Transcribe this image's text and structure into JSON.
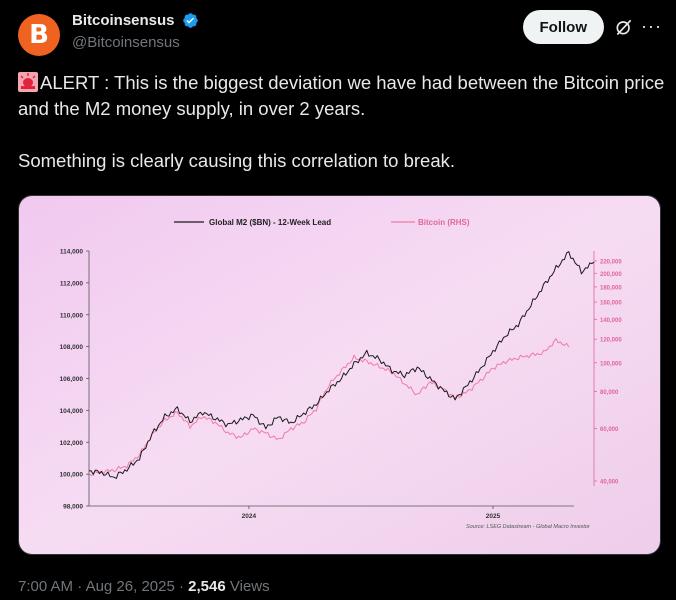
{
  "author": {
    "display_name": "Bitcoinsensus",
    "handle": "@Bitcoinsensus",
    "avatar_letter": "B",
    "avatar_color": "#f0621f"
  },
  "actions": {
    "follow_label": "Follow",
    "grok_icon": "grok-icon",
    "more_icon": "more-dots-icon"
  },
  "tweet": {
    "line1": "ALERT : This is the biggest deviation we have had between the Bitcoin price and the M2 money supply, in over 2 years.",
    "line2": "Something is clearly causing this correlation to break."
  },
  "chart_data": {
    "type": "line",
    "legend": [
      "Global M2 ($BN) - 12-Week Lead",
      "Bitcoin (RHS)"
    ],
    "left_axis_ticks": [
      "114,000",
      "112,000",
      "110,000",
      "108,000",
      "106,000",
      "104,000",
      "102,000",
      "100,000",
      "98,000"
    ],
    "right_axis_ticks": [
      "220,000",
      "200,000",
      "180,000",
      "160,000",
      "140,000",
      "120,000",
      "100,000",
      "80,000",
      "60,000",
      "40,000"
    ],
    "x_ticks": [
      "2024",
      "2025"
    ],
    "source": "Source: LSEG Datastream - Global Macro Investor",
    "ylim_left": [
      98000,
      114000
    ],
    "ylim_right": [
      40000,
      220000
    ],
    "right_scale": "log",
    "legend_position": "top-center",
    "series": [
      {
        "name": "Global M2 ($BN) - 12-Week Lead",
        "color": "#1a1a1a",
        "axis": "left",
        "x": [
          0,
          3,
          6,
          9,
          12,
          15,
          18,
          21,
          24,
          27,
          30,
          33,
          36,
          39,
          42,
          45,
          48,
          51,
          54,
          57,
          60,
          63,
          66,
          69,
          72,
          75,
          78,
          81,
          84,
          87,
          90,
          93,
          96,
          99,
          102,
          105,
          108,
          111,
          114,
          117,
          120
        ],
        "values": [
          100200,
          100100,
          99800,
          100300,
          101000,
          102500,
          103600,
          104100,
          103300,
          103900,
          103500,
          103100,
          103400,
          103700,
          102900,
          103600,
          103200,
          103800,
          104400,
          105300,
          106000,
          106900,
          107600,
          107200,
          106500,
          106200,
          106700,
          106000,
          105300,
          104700,
          105600,
          106600,
          107700,
          108700,
          109400,
          110600,
          111800,
          112900,
          113900,
          112700,
          113300
        ]
      },
      {
        "name": "Bitcoin (RHS)",
        "color": "#f07aa6",
        "axis": "right",
        "x": [
          0,
          3,
          6,
          9,
          12,
          15,
          18,
          21,
          24,
          27,
          30,
          33,
          36,
          39,
          42,
          45,
          48,
          51,
          54,
          57,
          60,
          63,
          66,
          69,
          72,
          75,
          78,
          81,
          84,
          87,
          90,
          93,
          96,
          99,
          102,
          105,
          108,
          111,
          114
        ],
        "values": [
          42000,
          43000,
          43500,
          45000,
          49000,
          57000,
          64000,
          68000,
          61000,
          66000,
          63000,
          58000,
          56000,
          60000,
          58000,
          55000,
          60000,
          63000,
          70000,
          84000,
          94000,
          104000,
          101000,
          97000,
          93000,
          85000,
          78000,
          86000,
          82000,
          76000,
          80000,
          87000,
          96000,
          101000,
          104000,
          106000,
          108000,
          119000,
          113000
        ]
      }
    ]
  },
  "meta": {
    "time": "7:00 AM",
    "date": "Aug 26, 2025",
    "views_count": "2,546",
    "views_label": "Views"
  }
}
